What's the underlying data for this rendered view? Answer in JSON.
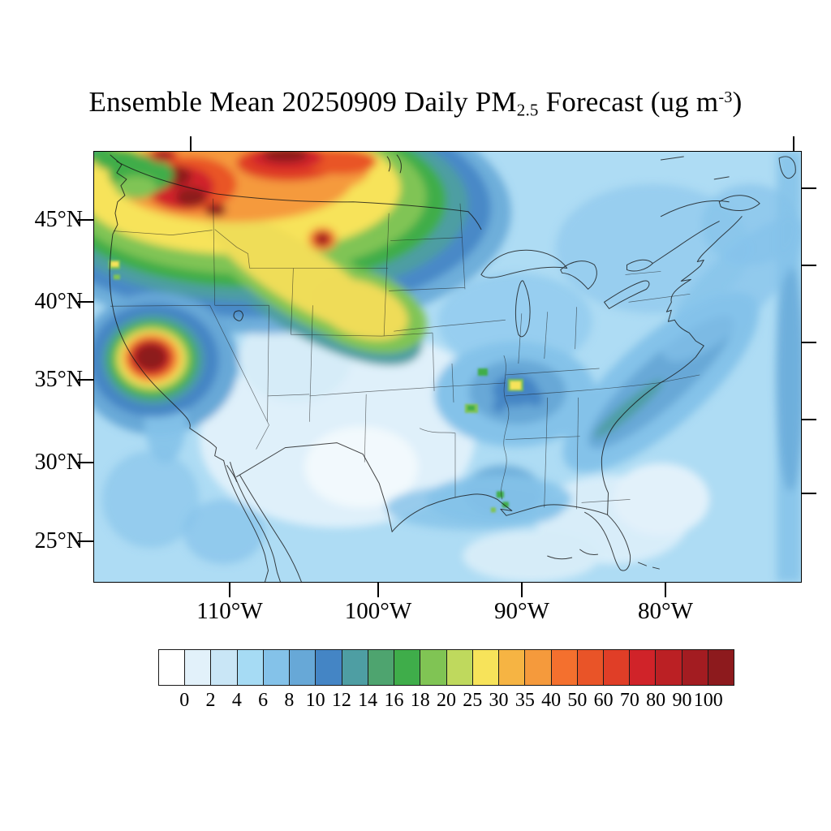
{
  "title": {
    "prefix": "Ensemble Mean 20250909 Daily PM",
    "subscript": "2.5",
    "middle": " Forecast (ug m",
    "superscript": "-3",
    "suffix": ")"
  },
  "map": {
    "y_axis": {
      "labels": [
        "45°N",
        "40°N",
        "35°N",
        "30°N",
        "25°N"
      ]
    },
    "x_axis": {
      "labels": [
        "110°W",
        "100°W",
        "90°W",
        "80°W"
      ]
    }
  },
  "colorbar": {
    "levels": [
      "0",
      "2",
      "4",
      "6",
      "8",
      "10",
      "12",
      "14",
      "16",
      "18",
      "20",
      "25",
      "30",
      "35",
      "40",
      "50",
      "60",
      "70",
      "80",
      "90",
      "100"
    ],
    "colors": [
      "#FFFFFF",
      "#E2F1FA",
      "#C9E6F6",
      "#A6DBF4",
      "#84C2E9",
      "#67A8D7",
      "#4485C5",
      "#4E9EA3",
      "#4EA46F",
      "#3FAD4A",
      "#80C454",
      "#BFD95D",
      "#F7E35A",
      "#F6B443",
      "#F59A3C",
      "#F4702E",
      "#E95428",
      "#E03E27",
      "#D02329",
      "#BB2024",
      "#A31C21",
      "#8D1A1D"
    ]
  },
  "chart_data": {
    "type": "heatmap",
    "title": "Ensemble Mean 20250909 Daily PM2.5 Forecast (ug m-3)",
    "variable": "Daily-mean surface PM2.5, ensemble mean forecast",
    "date": "20250909",
    "units": "ug m-3",
    "projection": "Lambert-conformal style map of the continental United States with parts of Canada and Mexico",
    "xlabel_ticks": [
      "110°W",
      "100°W",
      "90°W",
      "80°W"
    ],
    "ylabel_ticks": [
      "45°N",
      "40°N",
      "35°N",
      "30°N",
      "25°N"
    ],
    "color_levels": [
      0,
      2,
      4,
      6,
      8,
      10,
      12,
      14,
      16,
      18,
      20,
      25,
      30,
      35,
      40,
      50,
      60,
      70,
      80,
      90,
      100
    ],
    "palette": [
      "#FFFFFF",
      "#E2F1FA",
      "#C9E6F6",
      "#A6DBF4",
      "#84C2E9",
      "#67A8D7",
      "#4485C5",
      "#4E9EA3",
      "#4EA46F",
      "#3FAD4A",
      "#80C454",
      "#BFD95D",
      "#F7E35A",
      "#F6B443",
      "#F59A3C",
      "#F4702E",
      "#E95428",
      "#E03E27",
      "#D02329",
      "#BB2024",
      "#A31C21",
      "#8D1A1D"
    ],
    "legend_position": "horizontal colorbar below map",
    "features": [
      {
        "region": "Pacific Northwest / northern Rockies smoke complex (N Washington, Idaho panhandle, W Montana, S British Columbia)",
        "approx_lat": 47,
        "approx_lon": -116,
        "values": "30-100+, multiple dark-red cores >100 surrounded by orange/yellow (25-60) and green fringe (14-20)"
      },
      {
        "region": "Smoke band sweeping southeast through Montana, Wyoming, W South Dakota into W Nebraska",
        "approx_lat": 44,
        "approx_lon": -104,
        "values": "yellow band 25-30 with green edges 14-20"
      },
      {
        "region": "Northern California (Sierra foothills) wildfire hotspot",
        "approx_lat": 37.5,
        "approx_lon": -120,
        "values": "concentric rings, dark-red core >100 falling off through red/orange/yellow/green to blue"
      },
      {
        "region": "Washington/Oregon coast specks",
        "values": "small green/yellow patches 16-30, tiny dark-red spot at Canadian border"
      },
      {
        "region": "Mid-South cluster (SE Missouri, W Kentucky/Tennessee, N Mississippi)",
        "approx_lat": 36,
        "approx_lon": -89,
        "values": "8-14 with isolated green/yellow pixels 16-30"
      },
      {
        "region": "Louisiana small spots",
        "values": "isolated green specks 16-20"
      },
      {
        "region": "Atlantic band offshore the Carolinas",
        "values": "8-12 with a narrow teal-green streak 12-16 hugging the coast"
      },
      {
        "region": "Background over most of CONUS, Gulf and Atlantic",
        "values": "2-8 light blues; near-white <2 over desert Southwest, west Texas and parts of the ocean"
      }
    ]
  }
}
